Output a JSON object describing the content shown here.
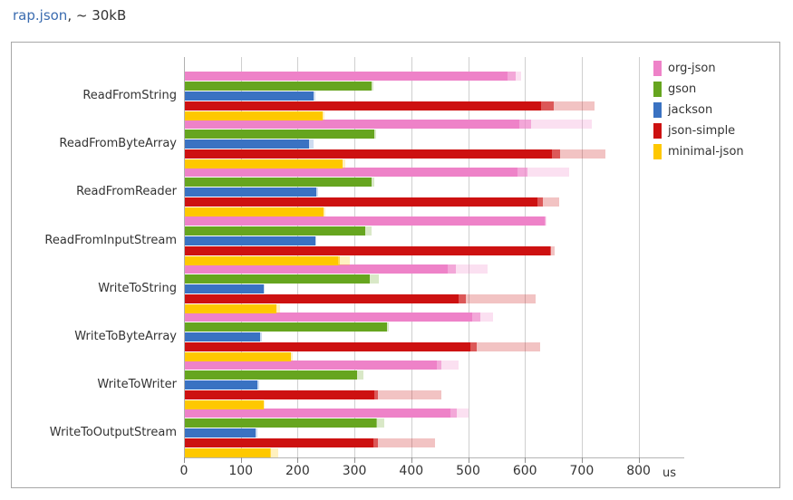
{
  "header": {
    "file_link": "rap.json",
    "suffix": ", ~ 30kB"
  },
  "chart_data": {
    "type": "bar",
    "orientation": "horizontal",
    "title": "rap.json, ~ 30kB",
    "xlabel": "us",
    "unit_label": "us",
    "xlim": [
      0,
      860
    ],
    "xticks": [
      0,
      100,
      200,
      300,
      400,
      500,
      600,
      700,
      800
    ],
    "grid": "vertical",
    "legend_position": "top-right",
    "segment_meaning": [
      "solid value (us)",
      "inner shade end (us)",
      "light shade end (us)"
    ],
    "categories": [
      "ReadFromString",
      "ReadFromByteArray",
      "ReadFromReader",
      "ReadFromInputStream",
      "WriteToString",
      "WriteToByteArray",
      "WriteToWriter",
      "WriteToOutputStream"
    ],
    "series": [
      {
        "name": "org-json",
        "color": "#ee82c8",
        "bars": [
          [
            568,
            582,
            592
          ],
          [
            588,
            609,
            716
          ],
          [
            585,
            603,
            677
          ],
          [
            633,
            634,
            637
          ],
          [
            463,
            477,
            532
          ],
          [
            506,
            520,
            542
          ],
          [
            443,
            452,
            481
          ],
          [
            468,
            478,
            499
          ]
        ]
      },
      {
        "name": "gson",
        "color": "#66a51f",
        "bars": [
          [
            328,
            328,
            332
          ],
          [
            333,
            333,
            337
          ],
          [
            328,
            328,
            333
          ],
          [
            318,
            318,
            328
          ],
          [
            325,
            325,
            342
          ],
          [
            355,
            355,
            359
          ],
          [
            303,
            303,
            314
          ],
          [
            336,
            338,
            351
          ]
        ]
      },
      {
        "name": "jackson",
        "color": "#3a72c2",
        "bars": [
          [
            227,
            227,
            230
          ],
          [
            219,
            219,
            227
          ],
          [
            232,
            232,
            235
          ],
          [
            229,
            229,
            232
          ],
          [
            139,
            139,
            141
          ],
          [
            132,
            132,
            135
          ],
          [
            128,
            128,
            131
          ],
          [
            125,
            125,
            128
          ]
        ]
      },
      {
        "name": "json-simple",
        "color": "#cd1111",
        "bars": [
          [
            627,
            649,
            721
          ],
          [
            646,
            660,
            740
          ],
          [
            621,
            630,
            658
          ],
          [
            642,
            645,
            650
          ],
          [
            481,
            495,
            617
          ],
          [
            502,
            514,
            625
          ],
          [
            333,
            340,
            451
          ],
          [
            332,
            340,
            440
          ]
        ]
      },
      {
        "name": "minimal-json",
        "color": "#fec800",
        "bars": [
          [
            242,
            242,
            246
          ],
          [
            277,
            277,
            282
          ],
          [
            244,
            244,
            248
          ],
          [
            270,
            272,
            290
          ],
          [
            161,
            161,
            167
          ],
          [
            186,
            186,
            190
          ],
          [
            138,
            138,
            141
          ],
          [
            150,
            152,
            164
          ]
        ]
      }
    ]
  },
  "style": {
    "grid_color": "#cfcfcf",
    "axis_color": "#b0b0b0",
    "text_color": "#333333",
    "link_color": "#3b6cb0",
    "border_color": "#a8a8a8",
    "mid_shade_opacity": 0.7,
    "light_shade_opacity": 0.25
  }
}
